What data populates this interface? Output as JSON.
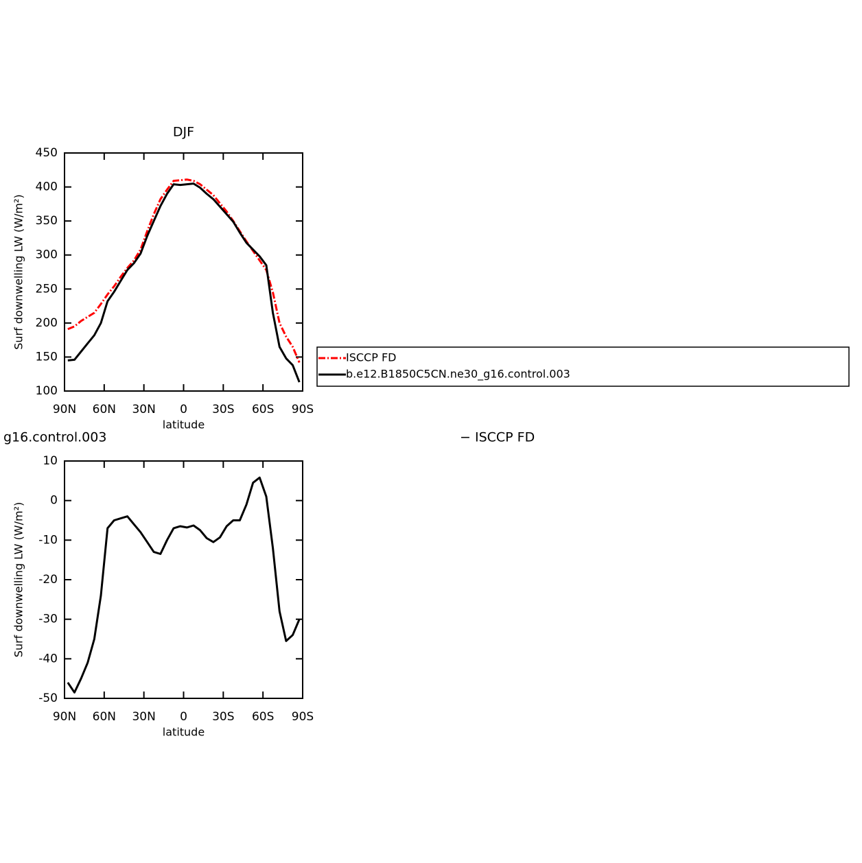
{
  "chart_data": [
    {
      "type": "line",
      "title": "DJF",
      "xlabel": "latitude",
      "ylabel": "Surf downwelling LW (W/m²)",
      "xlim": [
        90,
        -90
      ],
      "xticks": [
        {
          "value": 90,
          "label": "90N"
        },
        {
          "value": 60,
          "label": "60N"
        },
        {
          "value": 30,
          "label": "30N"
        },
        0,
        {
          "value": -30,
          "label": "30S"
        },
        {
          "value": -60,
          "label": "60S"
        },
        {
          "value": -90,
          "label": "90S"
        }
      ],
      "ylim": [
        100,
        450
      ],
      "yticks": [
        100,
        150,
        200,
        250,
        300,
        350,
        400,
        450
      ],
      "x": [
        87.5,
        82.5,
        77.5,
        72.5,
        67.5,
        62.5,
        57.5,
        52.5,
        47.5,
        42.5,
        37.5,
        32.5,
        27.5,
        22.5,
        17.5,
        12.5,
        7.5,
        2.5,
        -2.5,
        -7.5,
        -12.5,
        -17.5,
        -22.5,
        -27.5,
        -32.5,
        -37.5,
        -42.5,
        -47.5,
        -52.5,
        -57.5,
        -62.5,
        -67.5,
        -72.5,
        -77.5,
        -82.5,
        -87.5
      ],
      "legend": true,
      "series": [
        {
          "name": "ISCCP FD",
          "color": "#ff0000",
          "style": "dashed",
          "values": [
            191,
            195,
            203,
            209,
            215,
            228,
            242,
            254,
            268,
            281,
            292,
            308,
            335,
            360,
            382,
            396,
            409,
            410,
            411,
            409,
            404,
            396,
            388,
            376,
            364,
            350,
            335,
            320,
            306,
            292,
            278,
            245,
            200,
            180,
            165,
            142
          ]
        },
        {
          "name": "b.e12.B1850C5CN.ne30_g16.control.003",
          "color": "#000000",
          "style": "solid",
          "values": [
            145,
            146,
            158,
            170,
            182,
            200,
            232,
            246,
            262,
            278,
            288,
            302,
            328,
            350,
            372,
            390,
            404,
            403,
            404,
            405,
            399,
            390,
            382,
            371,
            360,
            349,
            333,
            318,
            308,
            298,
            285,
            215,
            165,
            148,
            138,
            113
          ]
        }
      ]
    },
    {
      "type": "line",
      "title": "g16.control.003",
      "title_right": "− ISCCP FD",
      "xlabel": "latitude",
      "ylabel": "Surf downwelling LW (W/m²)",
      "xlim": [
        90,
        -90
      ],
      "xticks": [
        {
          "value": 90,
          "label": "90N"
        },
        {
          "value": 60,
          "label": "60N"
        },
        {
          "value": 30,
          "label": "30N"
        },
        0,
        {
          "value": -30,
          "label": "30S"
        },
        {
          "value": -60,
          "label": "60S"
        },
        {
          "value": -90,
          "label": "90S"
        }
      ],
      "ylim": [
        -50,
        10
      ],
      "yticks": [
        -50,
        -40,
        -30,
        -20,
        -10,
        0,
        10
      ],
      "x": [
        87.5,
        82.5,
        77.5,
        72.5,
        67.5,
        62.5,
        57.5,
        52.5,
        47.5,
        42.5,
        37.5,
        32.5,
        27.5,
        22.5,
        17.5,
        12.5,
        7.5,
        2.5,
        -2.5,
        -7.5,
        -12.5,
        -17.5,
        -22.5,
        -27.5,
        -32.5,
        -37.5,
        -42.5,
        -47.5,
        -52.5,
        -57.5,
        -62.5,
        -67.5,
        -72.5,
        -77.5,
        -82.5,
        -87.5
      ],
      "legend": false,
      "series": [
        {
          "color": "#000000",
          "style": "solid",
          "values": [
            -46,
            -48.5,
            -45,
            -41,
            -35,
            -24,
            -7,
            -5,
            -4.5,
            -4,
            -6,
            -8,
            -10.5,
            -13,
            -13.5,
            -10,
            -7,
            -6.5,
            -6.8,
            -6.3,
            -7.5,
            -9.5,
            -10.5,
            -9.3,
            -6.5,
            -5,
            -5,
            -1,
            4.5,
            5.8,
            1,
            -12,
            -28,
            -35.5,
            -34,
            -30
          ]
        }
      ]
    }
  ]
}
